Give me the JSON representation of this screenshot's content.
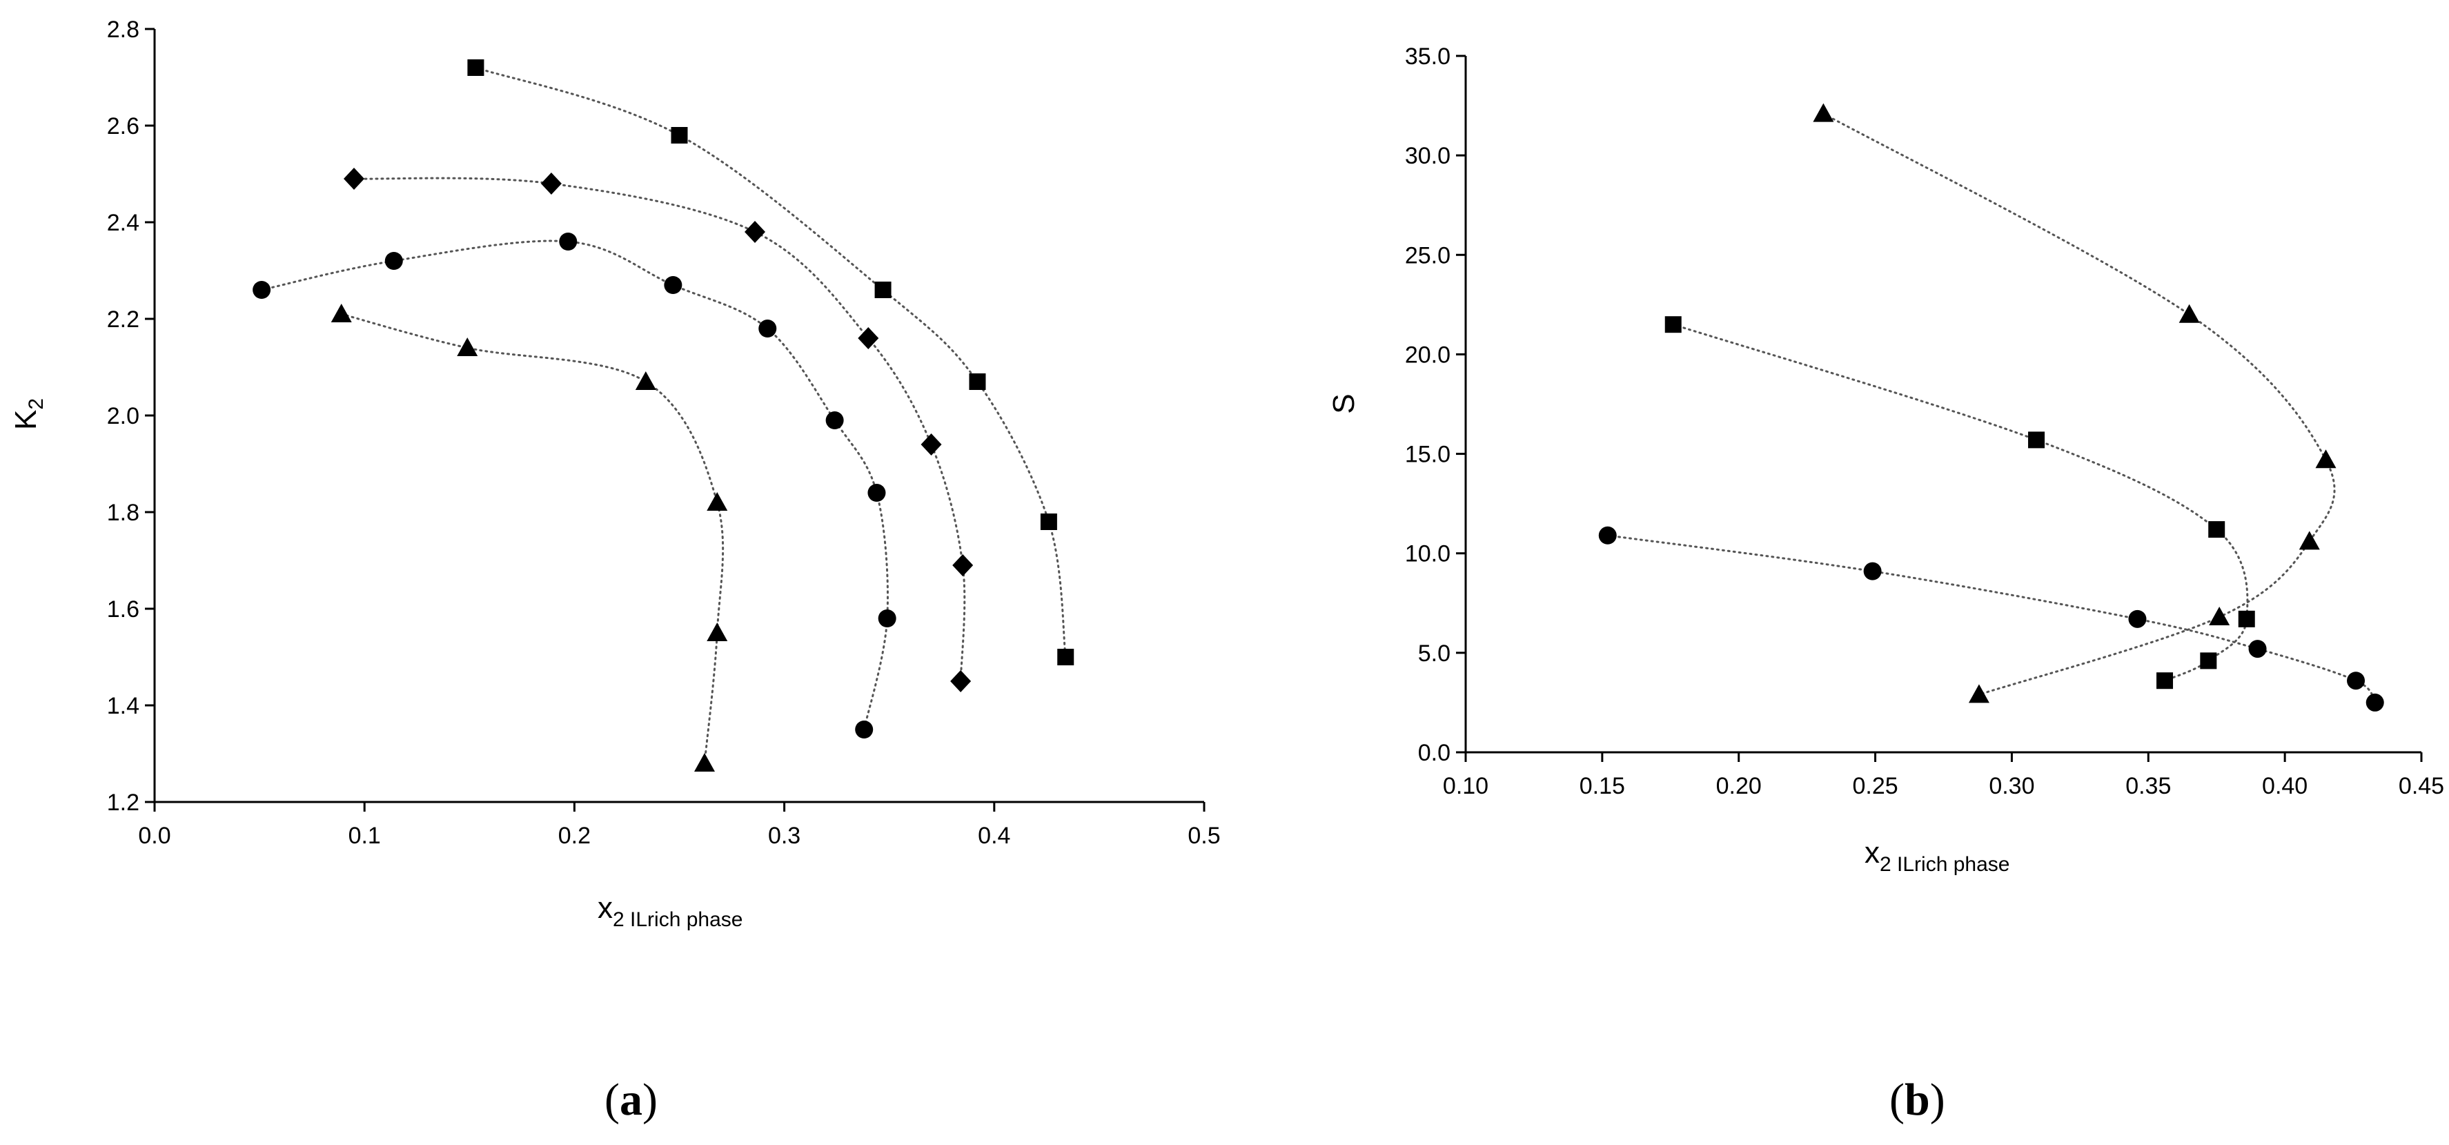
{
  "chart_data": [
    {
      "type": "scatter",
      "panel_label": "a",
      "xlabel_main": "x",
      "xlabel_sub": "2 ILrich phase",
      "ylabel_main": "K",
      "ylabel_sub": "2",
      "xlim": [
        0.0,
        0.5
      ],
      "ylim": [
        1.2,
        2.8
      ],
      "x_ticks": [
        "0.0",
        "0.1",
        "0.2",
        "0.3",
        "0.4",
        "0.5"
      ],
      "x_tick_values": [
        0.0,
        0.1,
        0.2,
        0.3,
        0.4,
        0.5
      ],
      "y_ticks": [
        "1.2",
        "1.4",
        "1.6",
        "1.8",
        "2.0",
        "2.2",
        "2.4",
        "2.6",
        "2.8"
      ],
      "y_tick_values": [
        1.2,
        1.4,
        1.6,
        1.8,
        2.0,
        2.2,
        2.4,
        2.6,
        2.8
      ],
      "grid": false,
      "series": [
        {
          "marker": "square",
          "points": [
            [
              0.153,
              2.72
            ],
            [
              0.25,
              2.58
            ],
            [
              0.347,
              2.26
            ],
            [
              0.392,
              2.07
            ],
            [
              0.426,
              1.78
            ],
            [
              0.434,
              1.5
            ]
          ]
        },
        {
          "marker": "diamond",
          "points": [
            [
              0.095,
              2.49
            ],
            [
              0.189,
              2.48
            ],
            [
              0.286,
              2.38
            ],
            [
              0.34,
              2.16
            ],
            [
              0.37,
              1.94
            ],
            [
              0.385,
              1.69
            ],
            [
              0.384,
              1.45
            ]
          ]
        },
        {
          "marker": "circle",
          "points": [
            [
              0.051,
              2.26
            ],
            [
              0.114,
              2.32
            ],
            [
              0.197,
              2.36
            ],
            [
              0.247,
              2.27
            ],
            [
              0.292,
              2.18
            ],
            [
              0.324,
              1.99
            ],
            [
              0.344,
              1.84
            ],
            [
              0.349,
              1.58
            ],
            [
              0.338,
              1.35
            ]
          ]
        },
        {
          "marker": "triangle",
          "points": [
            [
              0.089,
              2.21
            ],
            [
              0.149,
              2.14
            ],
            [
              0.234,
              2.07
            ],
            [
              0.268,
              1.82
            ],
            [
              0.268,
              1.55
            ],
            [
              0.262,
              1.28
            ]
          ]
        }
      ]
    },
    {
      "type": "scatter",
      "panel_label": "b",
      "xlabel_main": "x",
      "xlabel_sub": "2 ILrich phase",
      "ylabel_main": "S",
      "ylabel_sub": "",
      "xlim": [
        0.1,
        0.45
      ],
      "ylim": [
        0.0,
        35.0
      ],
      "x_ticks": [
        "0.10",
        "0.15",
        "0.20",
        "0.25",
        "0.30",
        "0.35",
        "0.40",
        "0.45"
      ],
      "x_tick_values": [
        0.1,
        0.15,
        0.2,
        0.25,
        0.3,
        0.35,
        0.4,
        0.45
      ],
      "y_ticks": [
        "0.0",
        "5.0",
        "10.0",
        "15.0",
        "20.0",
        "25.0",
        "30.0",
        "35.0"
      ],
      "y_tick_values": [
        0.0,
        5.0,
        10.0,
        15.0,
        20.0,
        25.0,
        30.0,
        35.0
      ],
      "grid": false,
      "series": [
        {
          "marker": "triangle",
          "points": [
            [
              0.231,
              32.1
            ],
            [
              0.365,
              22.0
            ],
            [
              0.415,
              14.7
            ],
            [
              0.409,
              10.6
            ],
            [
              0.376,
              6.8
            ],
            [
              0.288,
              2.9
            ]
          ]
        },
        {
          "marker": "square",
          "points": [
            [
              0.176,
              21.5
            ],
            [
              0.309,
              15.7
            ],
            [
              0.375,
              11.2
            ],
            [
              0.386,
              6.7
            ],
            [
              0.372,
              4.6
            ],
            [
              0.356,
              3.6
            ]
          ]
        },
        {
          "marker": "circle",
          "points": [
            [
              0.152,
              10.9
            ],
            [
              0.249,
              9.1
            ],
            [
              0.346,
              6.7
            ],
            [
              0.39,
              5.2
            ],
            [
              0.426,
              3.6
            ],
            [
              0.433,
              2.5
            ]
          ]
        }
      ]
    }
  ]
}
